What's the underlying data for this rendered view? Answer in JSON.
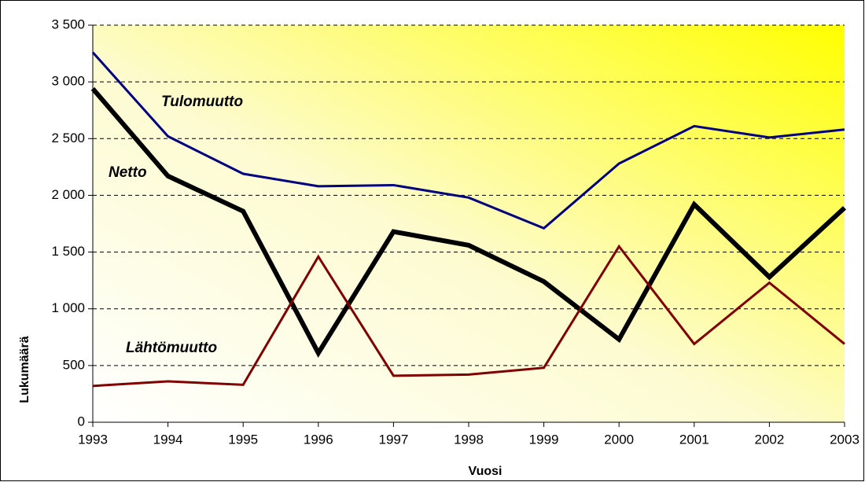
{
  "chart_data": {
    "type": "line",
    "x_label": "Vuosi",
    "y_label": "Lukumäärä",
    "x": [
      1993,
      1994,
      1995,
      1996,
      1997,
      1998,
      1999,
      2000,
      2001,
      2002,
      2003
    ],
    "xlim": [
      1993,
      2003
    ],
    "xticks": [
      1993,
      1994,
      1995,
      1996,
      1997,
      1998,
      1999,
      2000,
      2001,
      2002,
      2003
    ],
    "ylim": [
      0,
      3500
    ],
    "yticks": [
      0,
      500,
      {
        "value": 1000,
        "label": "1 000"
      },
      {
        "value": 1500,
        "label": "1 500"
      },
      {
        "value": 2000,
        "label": "2 000"
      },
      {
        "value": 2500,
        "label": "2 500"
      },
      {
        "value": 3000,
        "label": "3 000"
      },
      {
        "value": 3500,
        "label": "3 500"
      }
    ],
    "grid": true,
    "series": [
      {
        "name": "Tulomuutto",
        "color": "#000080",
        "values": [
          3260,
          2520,
          2190,
          2080,
          2090,
          1980,
          1710,
          2280,
          2610,
          2510,
          2580
        ]
      },
      {
        "name": "Netto",
        "color": "#000000",
        "values": [
          2940,
          2170,
          1860,
          610,
          1680,
          1560,
          1240,
          730,
          1920,
          1280,
          1890
        ]
      },
      {
        "name": "Lähtömuutto",
        "color": "#800000",
        "values": [
          320,
          360,
          330,
          1460,
          410,
          420,
          480,
          1550,
          690,
          1230,
          690
        ]
      }
    ]
  }
}
